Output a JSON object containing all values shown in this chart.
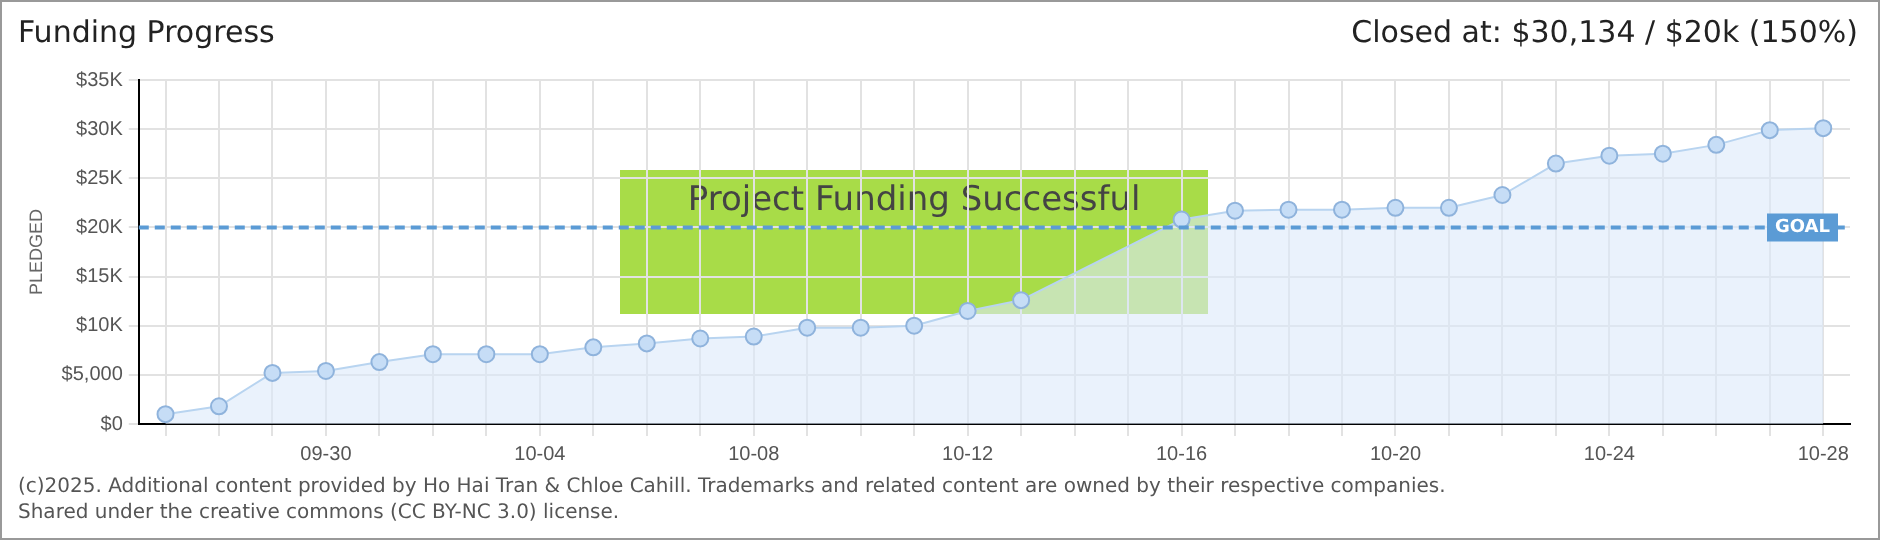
{
  "chart_data": {
    "type": "area",
    "title": "Funding Progress",
    "subtitle": "Closed at: $30,134 / $20k (150%)",
    "ylabel": "PLEDGED",
    "categories": [
      null,
      null,
      null,
      "09-30",
      null,
      null,
      null,
      "10-04",
      null,
      null,
      null,
      "10-08",
      null,
      null,
      null,
      "10-12",
      null,
      null,
      null,
      "10-16",
      null,
      null,
      null,
      "10-20",
      null,
      null,
      null,
      "10-24",
      null,
      null,
      null,
      "10-28"
    ],
    "series": [
      {
        "color": "#b8d4f0",
        "values": [
          1000,
          1800,
          5200,
          5400,
          6300,
          7100,
          7100,
          7100,
          7800,
          8200,
          8700,
          8900,
          9800,
          9800,
          10000,
          11500,
          12600,
          null,
          null,
          20800,
          21700,
          21800,
          21800,
          22000,
          22000,
          23300,
          26500,
          27300,
          27500,
          28400,
          29900,
          30100
        ]
      }
    ],
    "ylim": [
      0,
      35000
    ],
    "yticks": [
      {
        "value": 0,
        "label": "$0"
      },
      {
        "value": 5000,
        "label": "$5,000"
      },
      {
        "value": 10000,
        "label": "$10K"
      },
      {
        "value": 15000,
        "label": "$15K"
      },
      {
        "value": 20000,
        "label": "$20K"
      },
      {
        "value": 25000,
        "label": "$25K"
      },
      {
        "value": 30000,
        "label": "$30K"
      },
      {
        "value": 35000,
        "label": "$35K"
      }
    ],
    "grid": true,
    "legend": false,
    "marker": "circle",
    "ref_lines": [
      {
        "axis": "y",
        "value": 20000,
        "label": "GOAL",
        "color": "#5b9bd5",
        "line_style": "dashed"
      }
    ],
    "annotations": [
      "Project Funding Successful",
      "(c)2025. Additional content provided by Ho Hai Tran & Chloe Cahill. Trademarks and related content are owned by their respective companies.",
      "Shared under the creative commons (CC BY-NC 3.0) license."
    ]
  }
}
